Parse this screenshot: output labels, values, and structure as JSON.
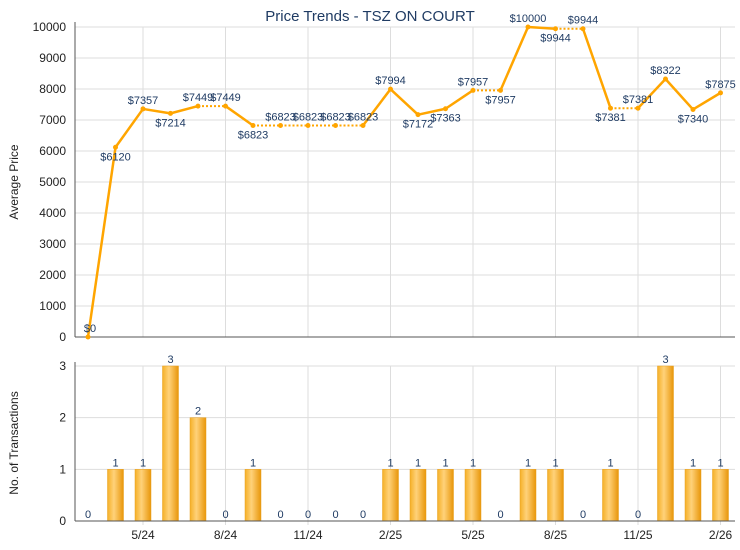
{
  "chart_data": [
    {
      "type": "line",
      "title": "Price Trends - TSZ ON COURT",
      "ylabel": "Average Price",
      "ylim": [
        0,
        10000
      ],
      "yticks": [
        0,
        1000,
        2000,
        3000,
        4000,
        5000,
        6000,
        7000,
        8000,
        9000,
        10000
      ],
      "months": [
        "3/24",
        "4/24",
        "5/24",
        "6/24",
        "7/24",
        "8/24",
        "9/24",
        "10/24",
        "11/24",
        "12/24",
        "1/25",
        "2/25",
        "3/25",
        "4/25",
        "5/25",
        "6/25",
        "7/25",
        "8/25",
        "9/25",
        "10/25",
        "11/25",
        "12/25",
        "1/26",
        "2/26"
      ],
      "values": [
        0,
        6120,
        7357,
        7214,
        7449,
        7449,
        6823,
        6823,
        6823,
        6823,
        6823,
        7994,
        7172,
        7363,
        7957,
        7957,
        10000,
        9944,
        9944,
        7381,
        7381,
        8322,
        7340,
        7875
      ],
      "labels": [
        "$0",
        "$6120",
        "$7357",
        "$7214",
        "$7449",
        "$7449",
        "$6823",
        "$6823",
        "$6823",
        "$6823",
        "$6823",
        "$7994",
        "$7172",
        "$7363",
        "$7957",
        "$7957",
        "$10000",
        "$9944",
        "$9944",
        "$7381",
        "$7381",
        "$8322",
        "$7340",
        "$7875"
      ],
      "color": "#FFA500"
    },
    {
      "type": "bar",
      "ylabel": "No. of Transactions",
      "ylim": [
        0,
        3
      ],
      "yticks": [
        0,
        1,
        2,
        3
      ],
      "xtick_labels": [
        "5/24",
        "8/24",
        "11/24",
        "2/25",
        "5/25",
        "8/25",
        "11/25",
        "2/26"
      ],
      "values": [
        0,
        1,
        1,
        3,
        2,
        0,
        1,
        0,
        0,
        0,
        0,
        1,
        1,
        1,
        1,
        0,
        1,
        1,
        0,
        1,
        0,
        3,
        1,
        1
      ],
      "color": "#F0A830"
    }
  ]
}
